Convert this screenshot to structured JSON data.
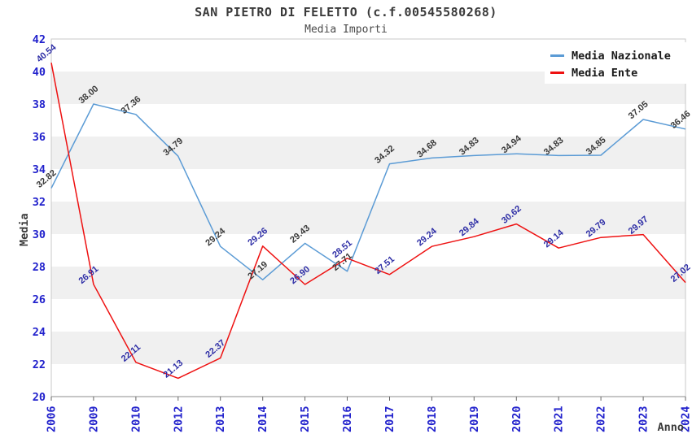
{
  "chart_data": {
    "type": "line",
    "title": "SAN PIETRO DI FELETTO (c.f.00545580268)",
    "subtitle": "Media Importi",
    "xlabel": "Anno",
    "ylabel": "Media",
    "ylim": [
      20,
      42
    ],
    "ytick_step": 2,
    "yticks": [
      20,
      22,
      24,
      26,
      28,
      30,
      32,
      34,
      36,
      38,
      40,
      42
    ],
    "categories": [
      "2006",
      "2009",
      "2010",
      "2012",
      "2013",
      "2014",
      "2015",
      "2016",
      "2017",
      "2018",
      "2019",
      "2020",
      "2021",
      "2022",
      "2023",
      "2024"
    ],
    "series": [
      {
        "name": "Media Nazionale",
        "color": "#5b9bd5",
        "label_color": "#3a3a3a",
        "values": [
          32.82,
          38.0,
          37.36,
          34.79,
          29.24,
          27.19,
          29.43,
          27.71,
          34.32,
          34.68,
          34.83,
          34.94,
          34.83,
          34.85,
          37.05,
          36.46
        ]
      },
      {
        "name": "Media Ente",
        "color": "#ee1111",
        "label_color": "#2e2ea6",
        "values": [
          40.54,
          26.91,
          22.11,
          21.13,
          22.37,
          29.26,
          26.9,
          28.51,
          27.51,
          29.24,
          29.84,
          30.62,
          29.14,
          29.79,
          29.97,
          27.02
        ]
      }
    ],
    "legend_position": "top-right",
    "grid": "striped-bands"
  },
  "style": {
    "band_color": "#f0f0f0",
    "axis_tick_color": "#2121cc",
    "plot_border_color": "#c9c9c9",
    "axis_line_color": "#8c8c8c",
    "tick_mark_color": "#666666",
    "title_color": "#3a3a3a"
  }
}
